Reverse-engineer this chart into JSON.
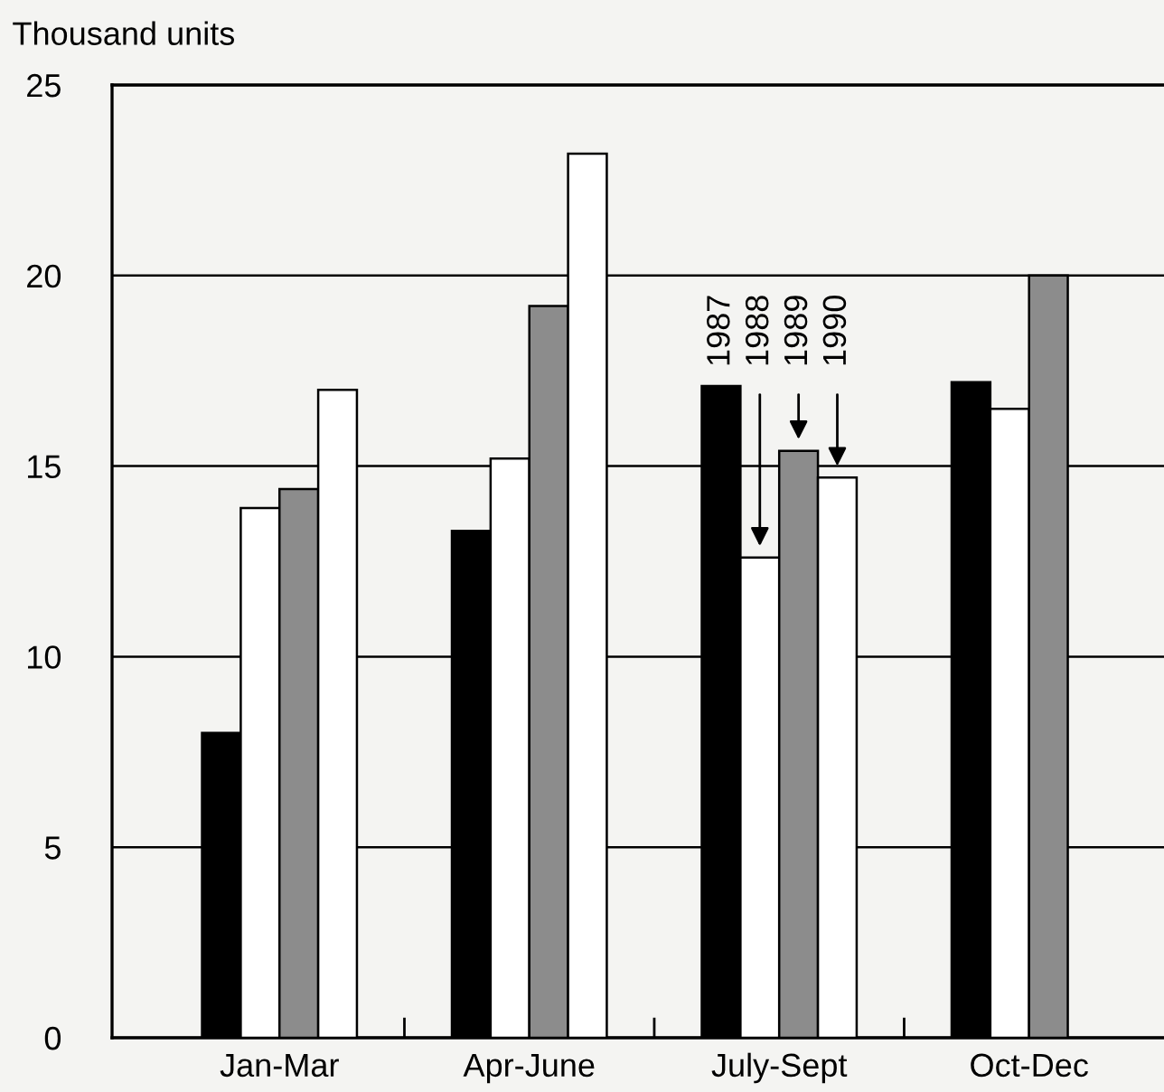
{
  "chart_data": {
    "type": "bar",
    "ylabel": "Thousand units",
    "categories": [
      "Jan-Mar",
      "Apr-June",
      "July-Sept",
      "Oct-Dec"
    ],
    "series": [
      {
        "name": "1987",
        "color": "#000000",
        "values": [
          8.0,
          13.3,
          17.1,
          17.2
        ]
      },
      {
        "name": "1988",
        "color": "#ffffff",
        "values": [
          13.9,
          15.2,
          12.6,
          16.5
        ]
      },
      {
        "name": "1989",
        "color": "#8c8c8c",
        "values": [
          14.4,
          19.2,
          15.4,
          20.0
        ]
      },
      {
        "name": "1990",
        "color": "#ffffff",
        "values": [
          17.0,
          23.2,
          14.7,
          null
        ]
      }
    ],
    "ylim": [
      0,
      25
    ],
    "yticks": [
      0,
      5,
      10,
      15,
      20,
      25
    ],
    "grid": "y",
    "legend": false
  }
}
